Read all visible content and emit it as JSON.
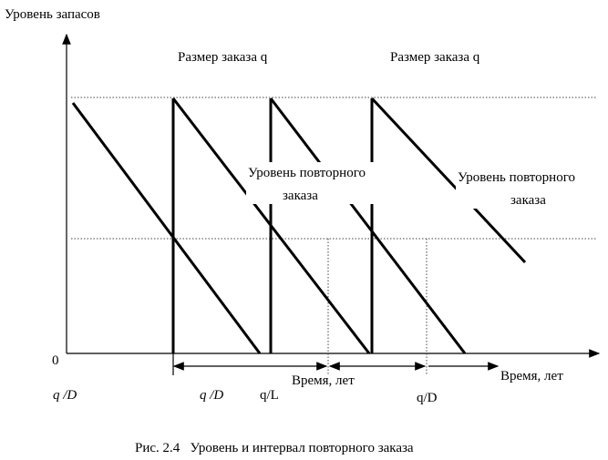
{
  "axis": {
    "y_label": "Уровень запасов",
    "origin": "0",
    "x_label": "Время, лет"
  },
  "annotations": {
    "order_size_1": "Размер заказа q",
    "order_size_2": "Размер заказа q",
    "reorder_1": [
      "Уровень повторного",
      "заказа"
    ],
    "reorder_2": [
      "Уровень повторного",
      "заказа"
    ]
  },
  "intervals": {
    "q_d_left": "q /D",
    "q_d_1": "q /D",
    "q_l": "q/L",
    "time_mid": "Время, лет",
    "q_d_2": "q/D"
  },
  "caption": "Рис. 2.4   Уровень и интервал повторного заказа"
}
